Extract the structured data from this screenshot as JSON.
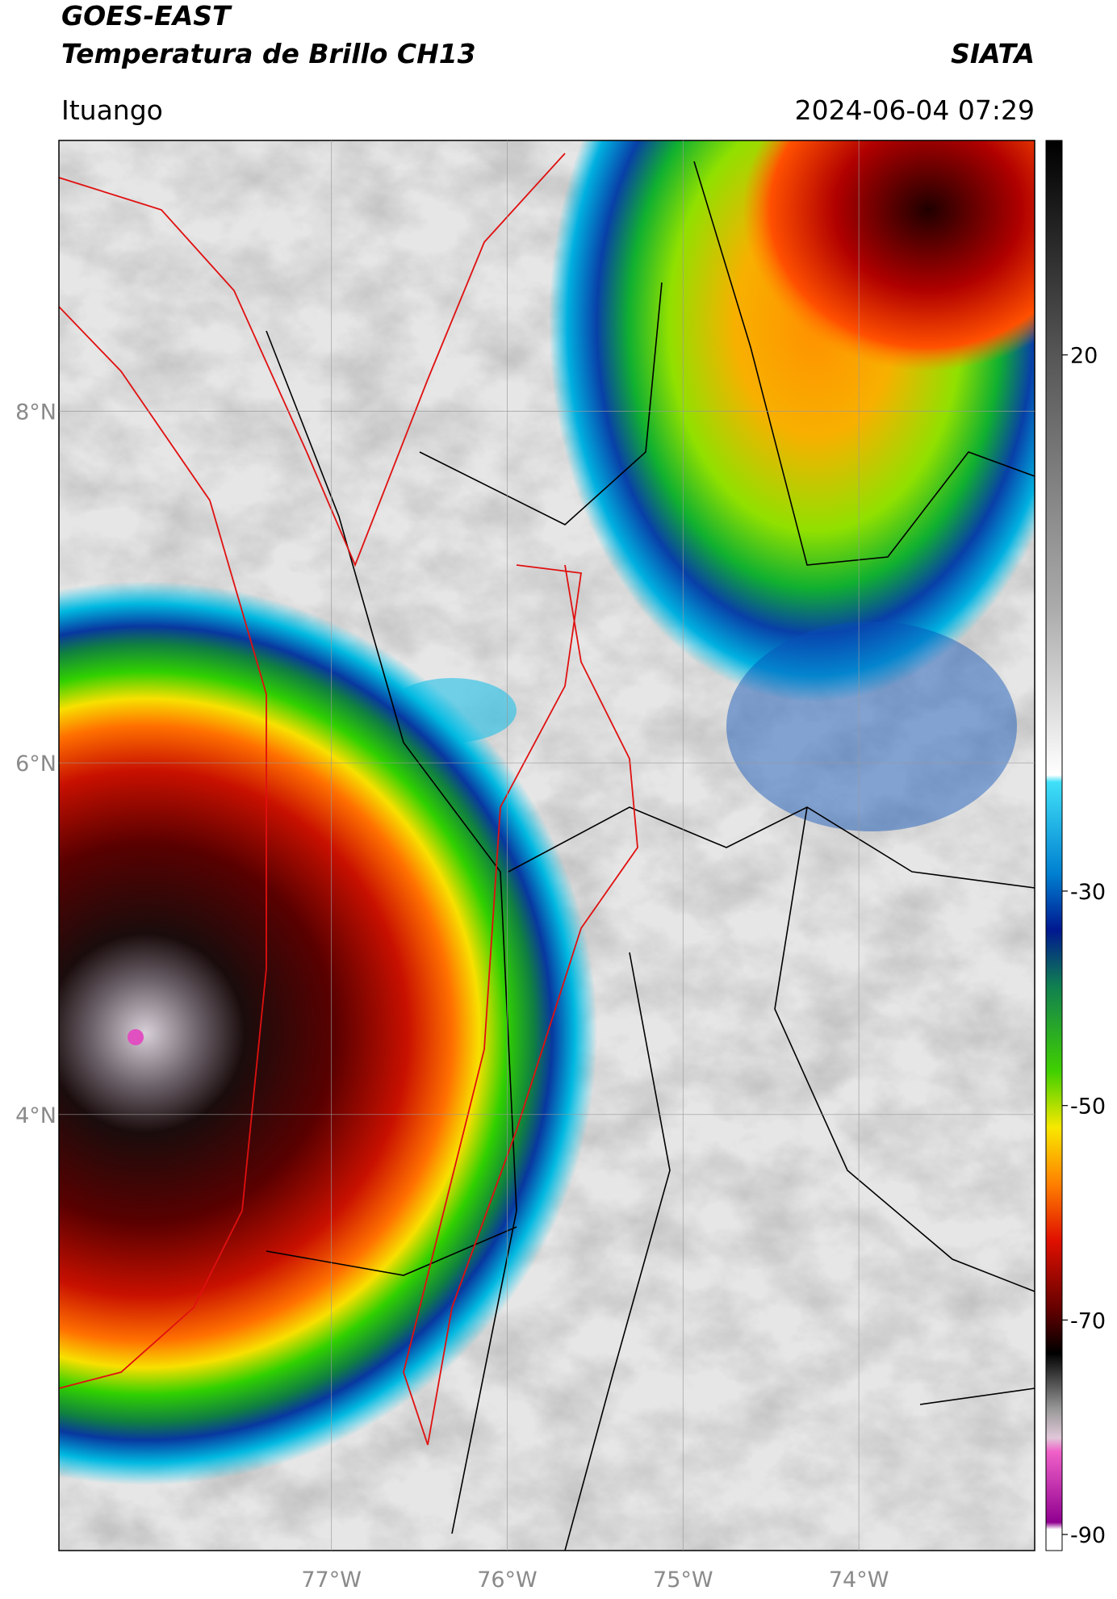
{
  "map": {
    "title_line1": "GOES-EAST",
    "title_line2": "Temperatura de Brillo CH13",
    "source": "SIATA",
    "location": "Ituango",
    "datetime": "2024-06-04 07:29",
    "xlim": [
      -78.55,
      -73.0
    ],
    "ylim": [
      1.52,
      9.54
    ],
    "xticks": [
      {
        "value": -77,
        "label": "77°W"
      },
      {
        "value": -76,
        "label": "76°W"
      },
      {
        "value": -75,
        "label": "75°W"
      },
      {
        "value": -74,
        "label": "74°W"
      }
    ],
    "yticks": [
      {
        "value": 8,
        "label": "8°N"
      },
      {
        "value": 6,
        "label": "6°N"
      },
      {
        "value": 4,
        "label": "4°N"
      }
    ],
    "grid": true,
    "colorbar": {
      "lim": [
        -91.5,
        40
      ],
      "ticks": [
        20,
        -30,
        -50,
        -70,
        -90
      ]
    }
  }
}
